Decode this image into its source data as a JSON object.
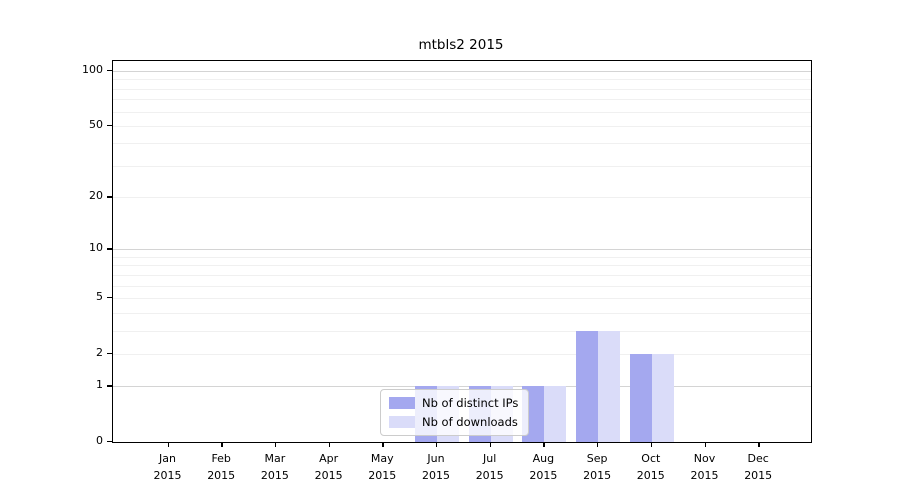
{
  "figure": {
    "title": "mtbls2 2015"
  },
  "chart_data": {
    "type": "bar",
    "title": "mtbls2 2015",
    "categories": [
      "Jan 2015",
      "Feb 2015",
      "Mar 2015",
      "Apr 2015",
      "May 2015",
      "Jun 2015",
      "Jul 2015",
      "Aug 2015",
      "Sep 2015",
      "Oct 2015",
      "Nov 2015",
      "Dec 2015"
    ],
    "x_tick_labels": [
      {
        "line1": "Jan",
        "line2": "2015"
      },
      {
        "line1": "Feb",
        "line2": "2015"
      },
      {
        "line1": "Mar",
        "line2": "2015"
      },
      {
        "line1": "Apr",
        "line2": "2015"
      },
      {
        "line1": "May",
        "line2": "2015"
      },
      {
        "line1": "Jun",
        "line2": "2015"
      },
      {
        "line1": "Jul",
        "line2": "2015"
      },
      {
        "line1": "Aug",
        "line2": "2015"
      },
      {
        "line1": "Sep",
        "line2": "2015"
      },
      {
        "line1": "Oct",
        "line2": "2015"
      },
      {
        "line1": "Nov",
        "line2": "2015"
      },
      {
        "line1": "Dec",
        "line2": "2015"
      }
    ],
    "series": [
      {
        "name": "Nb of distinct IPs",
        "color": "#a4a8ef",
        "values": [
          0,
          0,
          0,
          0,
          0,
          1,
          1,
          1,
          3,
          2,
          0,
          0
        ]
      },
      {
        "name": "Nb of downloads",
        "color": "#dadcf9",
        "values": [
          0,
          0,
          0,
          0,
          0,
          1,
          1,
          1,
          3,
          2,
          0,
          0
        ]
      }
    ],
    "xlabel": "",
    "ylabel": "",
    "yscale": "log1p",
    "ylim": [
      0,
      113
    ],
    "y_tick_values": [
      0,
      1,
      2,
      5,
      10,
      20,
      50,
      100
    ],
    "y_tick_labels": [
      "0",
      "1",
      "2",
      "5",
      "10",
      "20",
      "50",
      "100"
    ],
    "major_grid_values": [
      1,
      10,
      100
    ],
    "minor_grid_values": [
      2,
      3,
      4,
      5,
      6,
      7,
      8,
      9,
      20,
      30,
      40,
      50,
      60,
      70,
      80,
      90
    ],
    "grid": "horizontal",
    "legend": {
      "position": "lower-center-inside",
      "entries": [
        "Nb of distinct IPs",
        "Nb of downloads"
      ]
    },
    "colors": {
      "major_grid": "#d4d4d4",
      "minor_grid": "#f0f0f0",
      "spine": "#000000",
      "text": "#000000",
      "background": "#ffffff"
    }
  }
}
